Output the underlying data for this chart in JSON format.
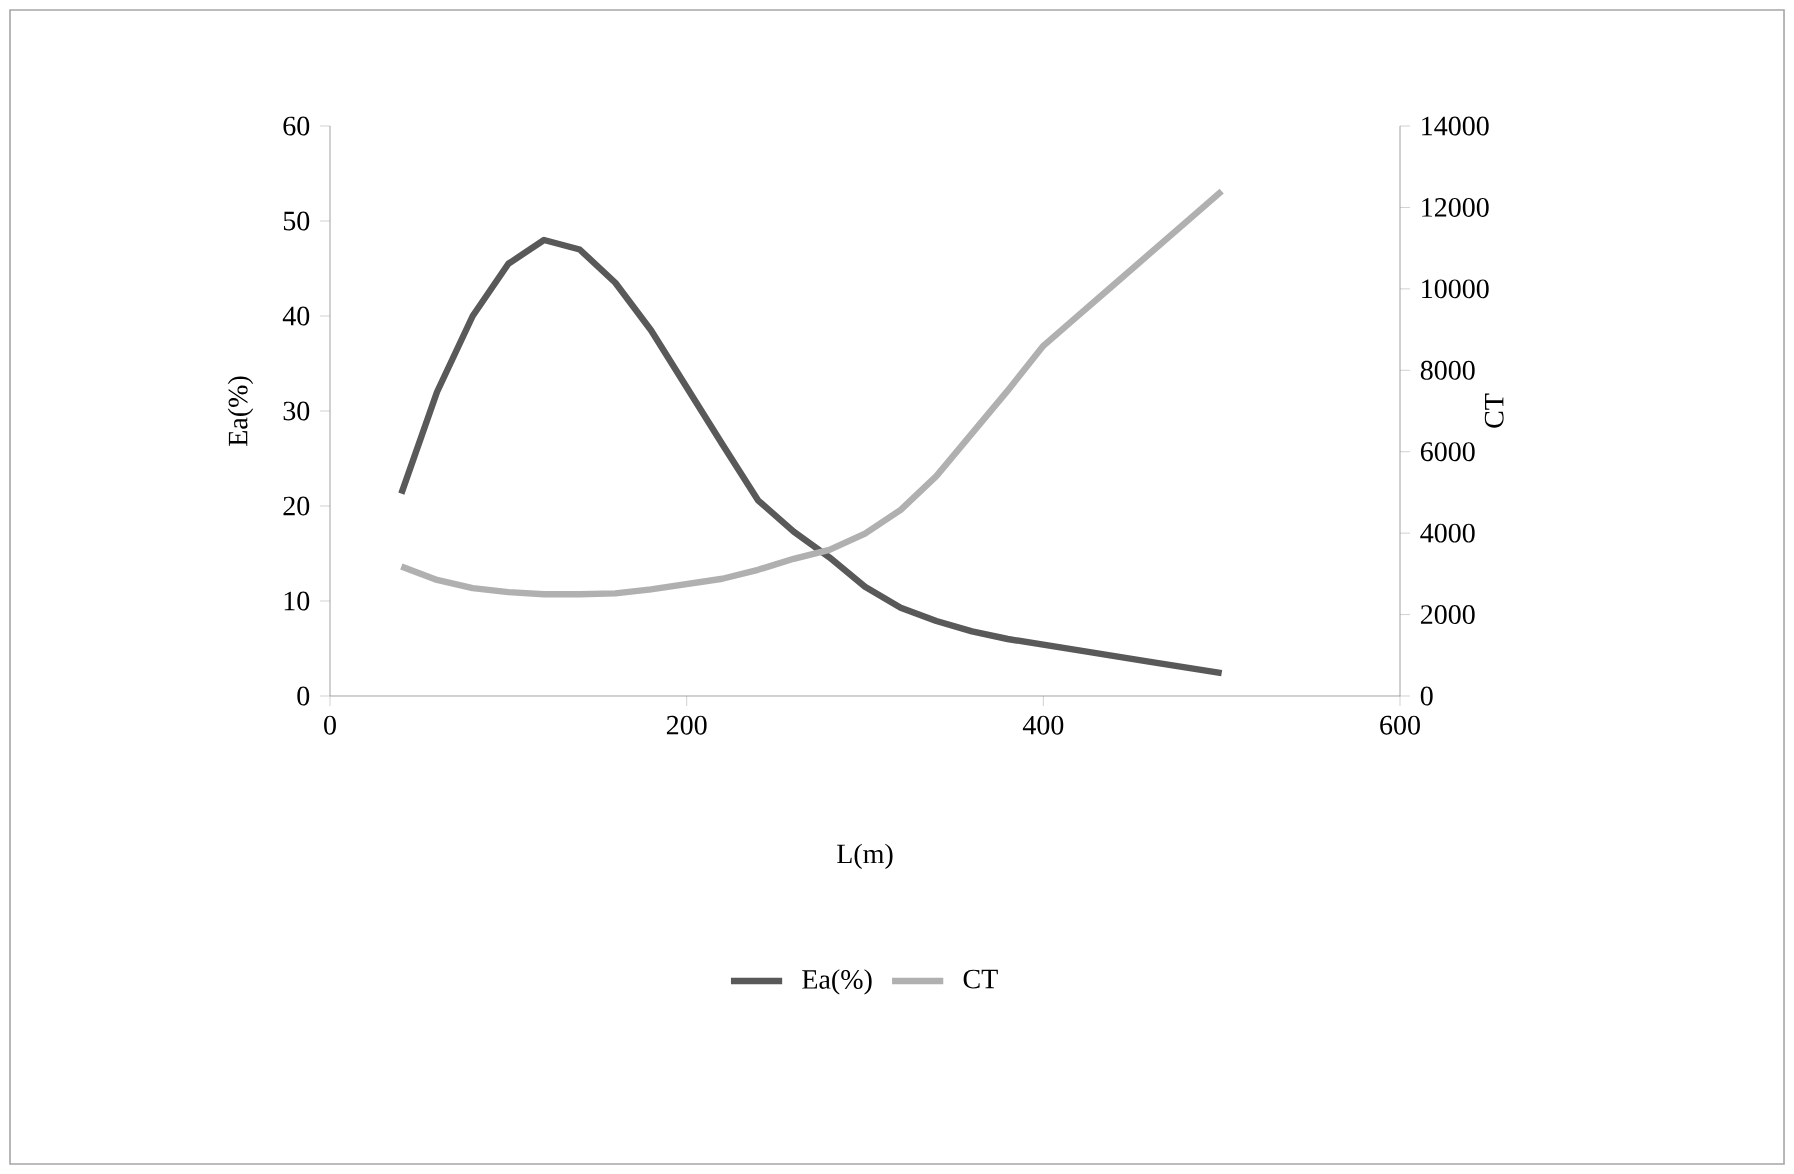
{
  "chart_data": {
    "type": "line",
    "xlabel": "L(m)",
    "ylabel": "Ea(%)",
    "y2label": "CT",
    "xlim": [
      0,
      600
    ],
    "xticks": [
      0,
      200,
      400,
      600
    ],
    "ylim": [
      0,
      60
    ],
    "yticks": [
      0,
      10,
      20,
      30,
      40,
      50,
      60
    ],
    "y2lim": [
      0,
      14000
    ],
    "y2ticks": [
      0,
      2000,
      4000,
      6000,
      8000,
      10000,
      12000,
      14000
    ],
    "grid": false,
    "legend": "bottom",
    "line_style": "solid",
    "series": [
      {
        "name": "Ea(%)",
        "color": "#595959",
        "x": [
          40,
          60,
          80,
          100,
          120,
          140,
          160,
          180,
          200,
          220,
          240,
          260,
          280,
          300,
          320,
          340,
          360,
          380,
          400,
          420,
          440,
          460,
          480,
          500
        ],
        "values": [
          21.3,
          32,
          40,
          45.5,
          48,
          47,
          43.5,
          38.5,
          32.5,
          26.5,
          20.6,
          17.3,
          14.6,
          11.5,
          9.3,
          7.9,
          6.8,
          6.0,
          5.4,
          4.8,
          4.2,
          3.6,
          3.0,
          2.4
        ]
      },
      {
        "name": "CT",
        "color": "#b0b0b0",
        "axis": "y2",
        "x": [
          40,
          60,
          80,
          100,
          120,
          140,
          160,
          180,
          200,
          220,
          240,
          260,
          280,
          300,
          320,
          340,
          360,
          380,
          400,
          420,
          440,
          460,
          480,
          500
        ],
        "values": [
          3180,
          2850,
          2650,
          2550,
          2500,
          2500,
          2520,
          2620,
          2750,
          2880,
          3100,
          3370,
          3590,
          3990,
          4570,
          5400,
          6450,
          7500,
          8600,
          9360,
          10120,
          10880,
          11640,
          12400
        ]
      }
    ]
  }
}
